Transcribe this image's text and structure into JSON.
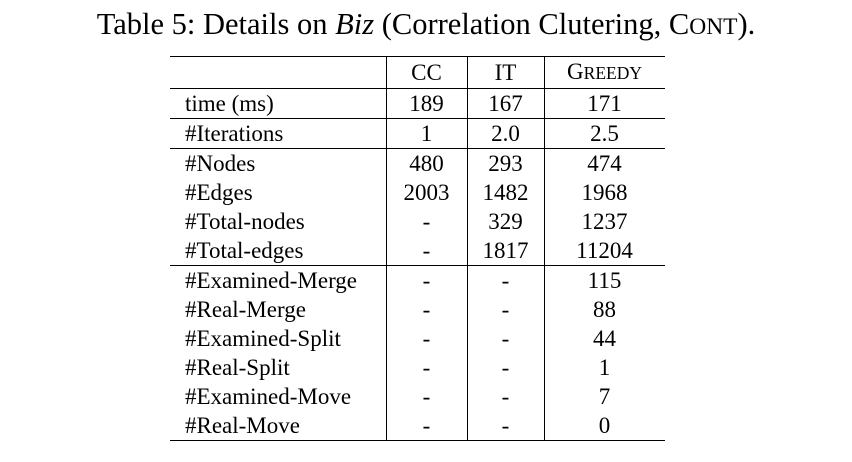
{
  "caption": {
    "prefix": "Table 5: Details on ",
    "dataset": "Biz",
    "middle": " (Correlation Clutering, C",
    "smallcaps_tail": "ONT",
    "suffix": ")."
  },
  "table": {
    "columns": [
      {
        "big": "",
        "small": ""
      },
      {
        "big": "CC",
        "small": ""
      },
      {
        "big": "IT",
        "small": ""
      },
      {
        "big": "G",
        "small": "REEDY"
      }
    ],
    "rows": [
      {
        "label": "time (ms)",
        "cc": "189",
        "it": "167",
        "greedy": "171"
      },
      {
        "label": "#Iterations",
        "cc": "1",
        "it": "2.0",
        "greedy": "2.5"
      },
      {
        "label": "#Nodes",
        "cc": "480",
        "it": "293",
        "greedy": "474"
      },
      {
        "label": "#Edges",
        "cc": "2003",
        "it": "1482",
        "greedy": "1968"
      },
      {
        "label": "#Total-nodes",
        "cc": "-",
        "it": "329",
        "greedy": "1237"
      },
      {
        "label": "#Total-edges",
        "cc": "-",
        "it": "1817",
        "greedy": "11204"
      },
      {
        "label": "#Examined-Merge",
        "cc": "-",
        "it": "-",
        "greedy": "115"
      },
      {
        "label": "#Real-Merge",
        "cc": "-",
        "it": "-",
        "greedy": "88"
      },
      {
        "label": "#Examined-Split",
        "cc": "-",
        "it": "-",
        "greedy": "44"
      },
      {
        "label": "#Real-Split",
        "cc": "-",
        "it": "-",
        "greedy": "1"
      },
      {
        "label": "#Examined-Move",
        "cc": "-",
        "it": "-",
        "greedy": "7"
      },
      {
        "label": "#Real-Move",
        "cc": "-",
        "it": "-",
        "greedy": "0"
      }
    ]
  }
}
